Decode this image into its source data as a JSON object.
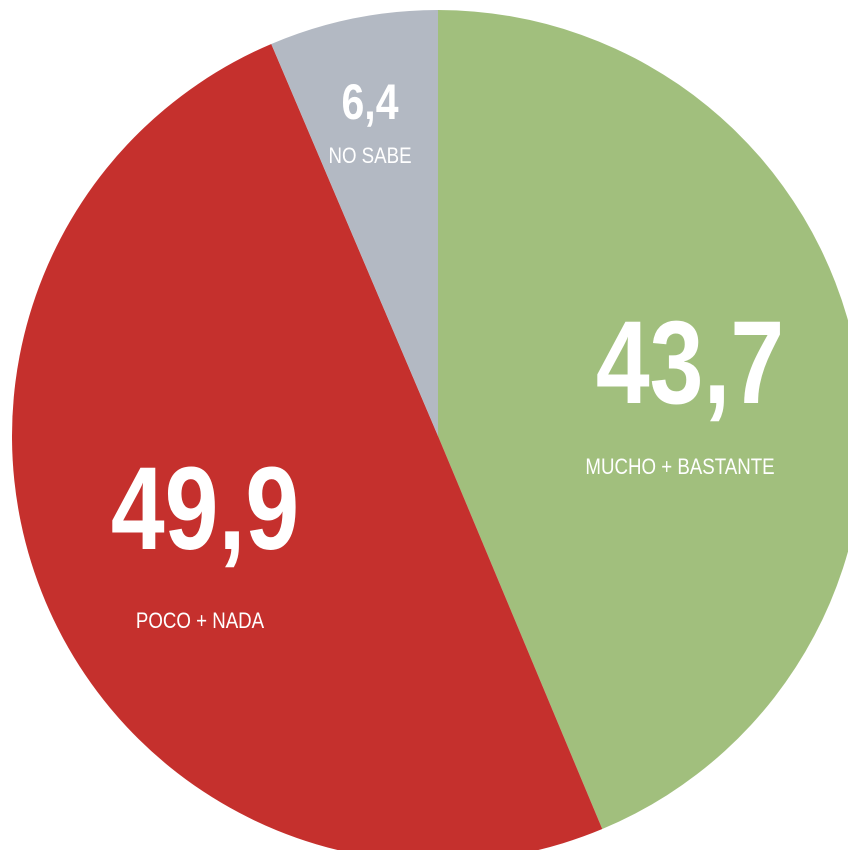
{
  "chart_data": {
    "type": "pie",
    "categories": [
      "MUCHO + BASTANTE",
      "POCO + NADA",
      "NO SABE"
    ],
    "values": [
      43.7,
      49.9,
      6.4
    ],
    "value_labels": [
      "43,7",
      "49,9",
      "6,4"
    ],
    "colors": [
      "#a1bf7d",
      "#c5302d",
      "#b3b9c3"
    ]
  }
}
